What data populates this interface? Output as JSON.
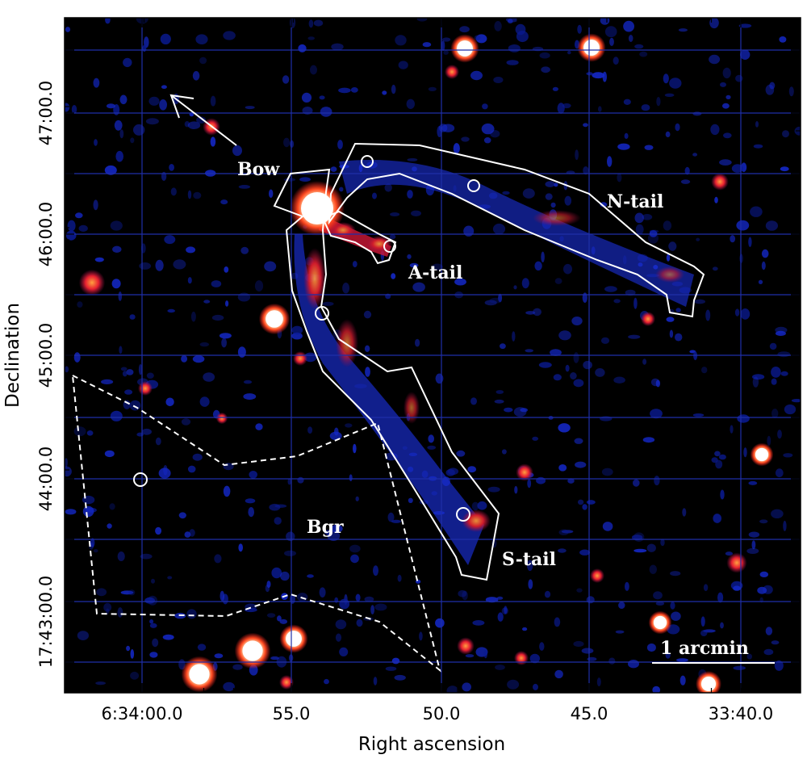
{
  "axes": {
    "xlabel": "Right ascension",
    "ylabel": "Declination",
    "x_ticks": [
      "6:34:00.0",
      "55.0",
      "50.0",
      "45.0",
      "33:40.0"
    ],
    "y_ticks": [
      "17:43:00.0",
      "44:00.0",
      "45:00.0",
      "46:00.0",
      "47:00.0"
    ]
  },
  "regions": {
    "bow": "Bow",
    "a_tail": "A-tail",
    "n_tail": "N-tail",
    "s_tail": "S-tail",
    "background": "Bgr"
  },
  "scale_bar": {
    "label": "1 arcmin"
  },
  "colors": {
    "sky_background": "#000000",
    "diffuse_emission": "#1a2fd0",
    "bright_emission": "#e8202a",
    "point_source_core": "#ffffff",
    "grid": "#1f2fa8",
    "region_outline": "#ffffff"
  },
  "direction_arrow": "arrow-icon"
}
